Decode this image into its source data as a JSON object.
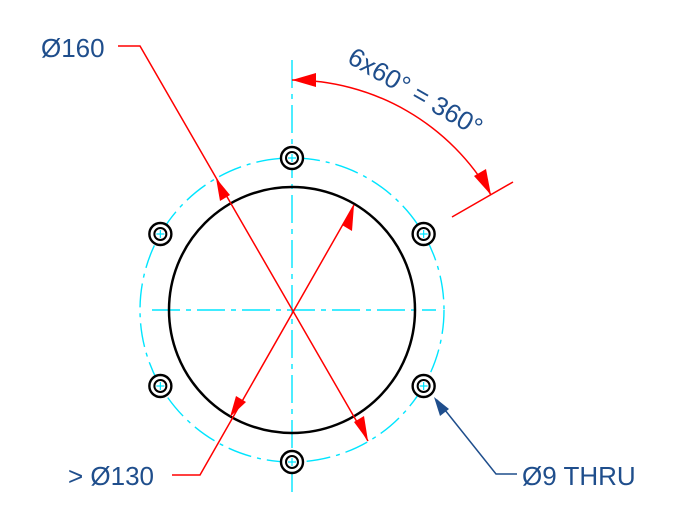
{
  "labels": {
    "diameter_160": "Ø160",
    "angle": "6x60° = 360°",
    "diameter_130": "> Ø130",
    "hole_callout": "Ø9 THRU"
  },
  "holes": {
    "count": 6,
    "pitch_angle_deg": 60,
    "hole_diameter": 9,
    "bolt_circle_diameter": 160,
    "bore_diameter": 130
  },
  "colors": {
    "dimension": "#ff0000",
    "centerline": "#00e5ff",
    "geometry": "#000000",
    "text": "#1f4e8c",
    "leader": "#1f4e8c"
  }
}
